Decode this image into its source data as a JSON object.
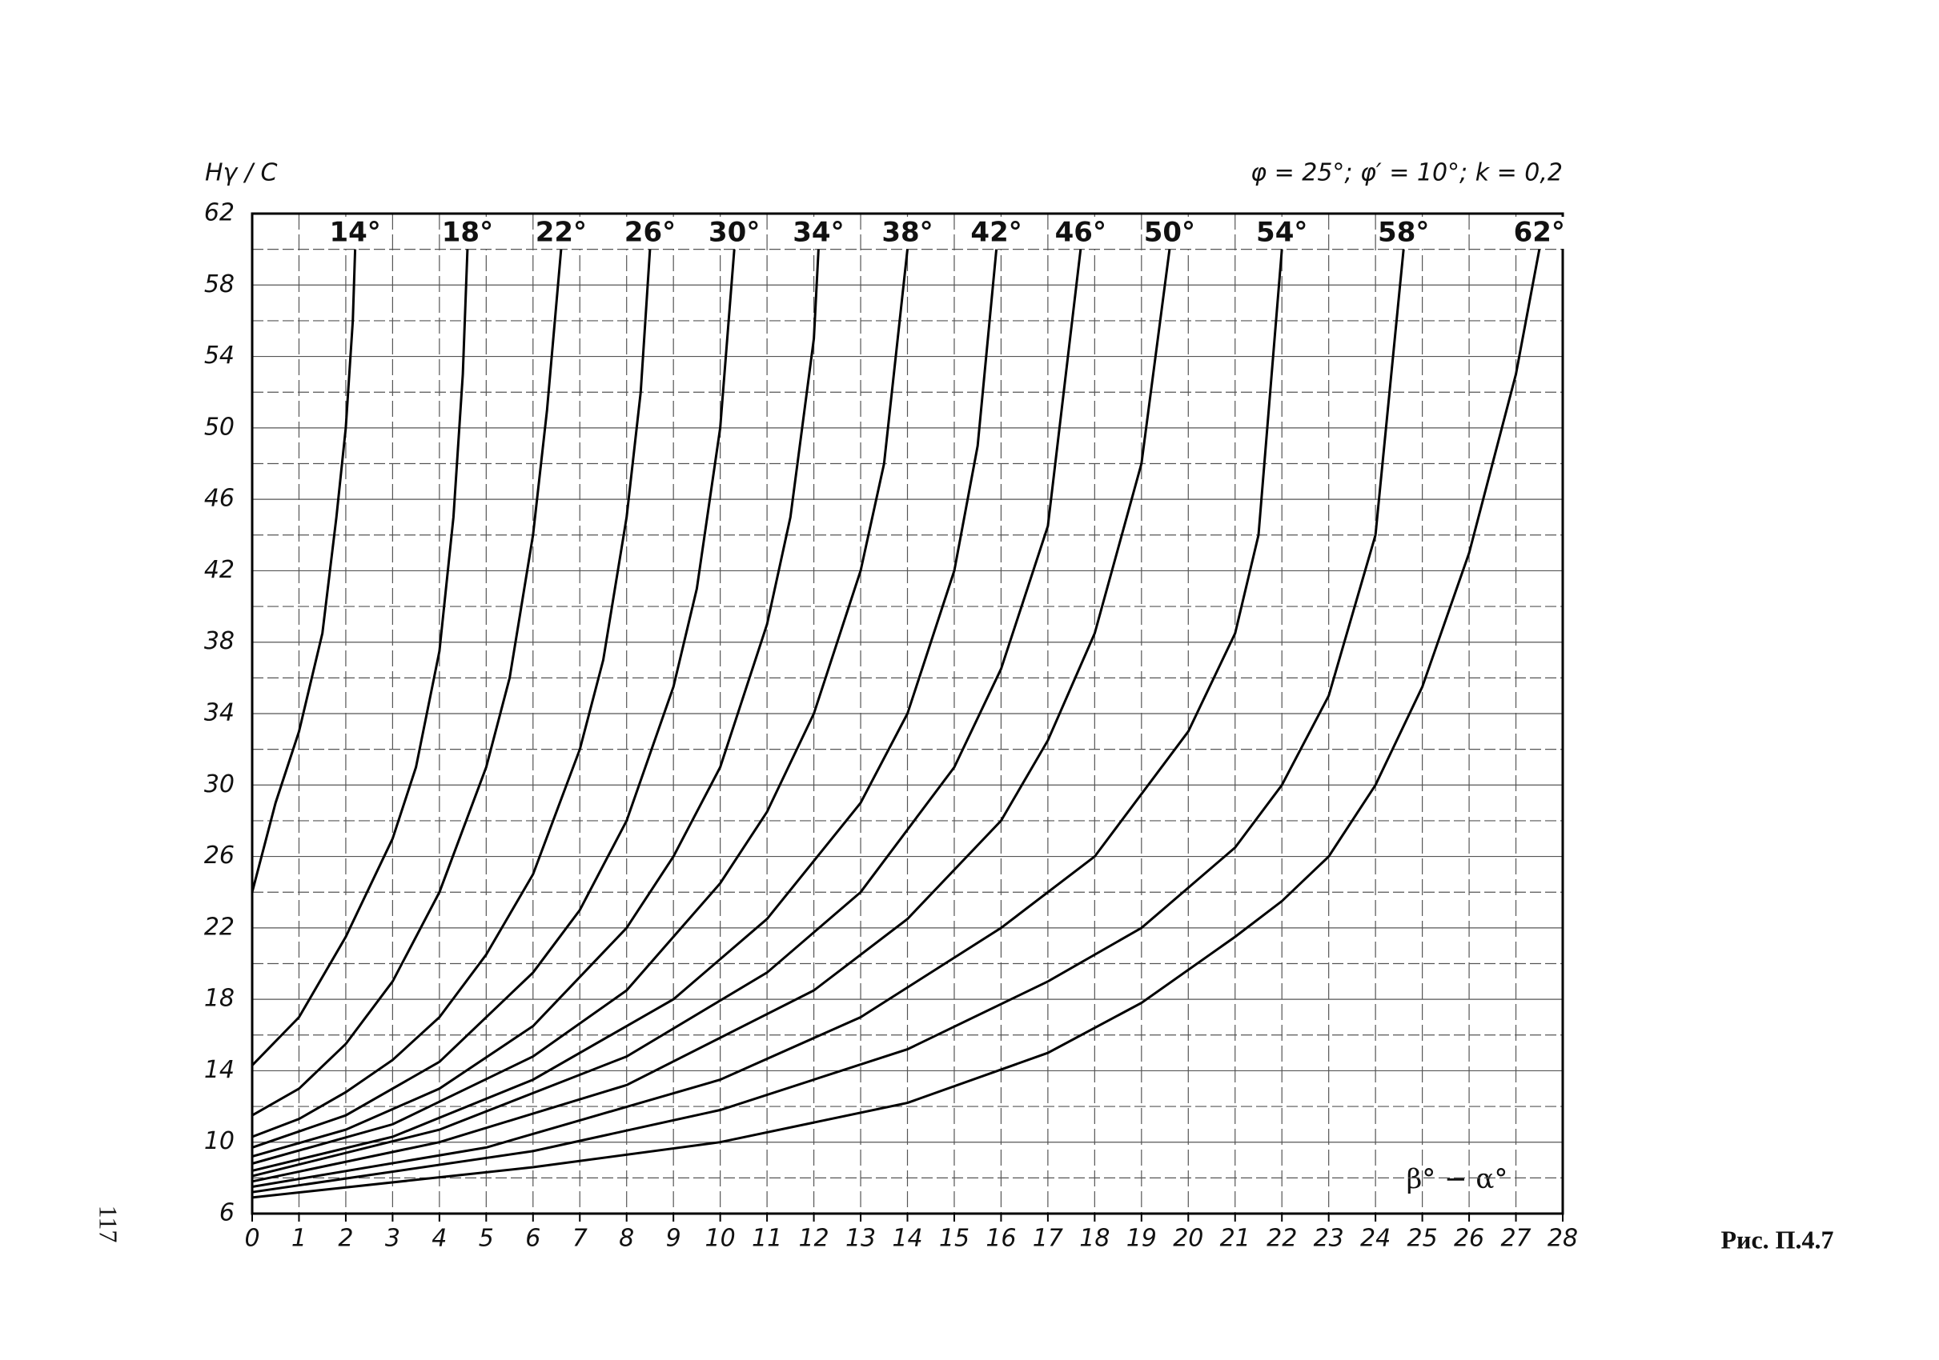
{
  "chart_data": {
    "type": "line",
    "y_title": "Hγ / C",
    "subtitle": "φ = 25°; φ′ = 10°; k = 0,2",
    "x_title": "β° − α°",
    "caption": "Рис. П.4.7",
    "page_number": "117",
    "xlim": [
      0,
      28
    ],
    "ylim": [
      6,
      62
    ],
    "xticks": [
      0,
      1,
      2,
      3,
      4,
      5,
      6,
      7,
      8,
      9,
      10,
      11,
      12,
      13,
      14,
      15,
      16,
      17,
      18,
      19,
      20,
      21,
      22,
      23,
      24,
      25,
      26,
      27,
      28
    ],
    "yticks": [
      6,
      10,
      14,
      18,
      22,
      26,
      30,
      34,
      38,
      42,
      46,
      50,
      54,
      58,
      62
    ],
    "yminor": [
      8,
      12,
      16,
      20,
      24,
      28,
      32,
      36,
      40,
      44,
      48,
      52,
      56,
      60
    ],
    "grid": true,
    "color": "#000000",
    "series": [
      {
        "name": "14°",
        "x": [
          0,
          0.5,
          1,
          1.5,
          1.8,
          2.0,
          2.15,
          2.2
        ],
        "values": [
          24,
          29,
          33,
          38.5,
          45,
          50,
          56,
          60
        ]
      },
      {
        "name": "18°",
        "x": [
          0,
          1,
          2,
          3,
          3.5,
          4,
          4.3,
          4.5,
          4.6
        ],
        "values": [
          14.3,
          17,
          21.5,
          27,
          31,
          37.5,
          45,
          53,
          60
        ]
      },
      {
        "name": "22°",
        "x": [
          0,
          1,
          2,
          3,
          4,
          5,
          5.5,
          6,
          6.3,
          6.6
        ],
        "values": [
          11.5,
          13,
          15.5,
          19,
          24,
          31,
          36,
          44,
          51,
          60
        ]
      },
      {
        "name": "26°",
        "x": [
          0,
          1,
          2,
          3,
          4,
          5,
          6,
          7,
          7.5,
          8,
          8.3,
          8.5
        ],
        "values": [
          10.3,
          11.3,
          12.8,
          14.6,
          17,
          20.5,
          25,
          32,
          37,
          45,
          52,
          60
        ]
      },
      {
        "name": "30°",
        "x": [
          0,
          2,
          4,
          6,
          7,
          8,
          9,
          9.5,
          10,
          10.3
        ],
        "values": [
          9.7,
          11.5,
          14.5,
          19.5,
          23,
          28,
          35.5,
          41,
          50,
          60
        ]
      },
      {
        "name": "34°",
        "x": [
          0,
          2,
          4,
          6,
          8,
          9,
          10,
          11,
          11.5,
          12,
          12.1
        ],
        "values": [
          9.2,
          10.7,
          13,
          16.5,
          22,
          26,
          31,
          39,
          45,
          55,
          60
        ]
      },
      {
        "name": "38°",
        "x": [
          0,
          3,
          6,
          8,
          10,
          11,
          12,
          13,
          13.5,
          14
        ],
        "values": [
          8.8,
          11,
          14.8,
          18.5,
          24.5,
          28.5,
          34,
          42,
          48,
          60
        ]
      },
      {
        "name": "42°",
        "x": [
          0,
          3,
          6,
          9,
          11,
          13,
          14,
          15,
          15.5,
          15.9
        ],
        "values": [
          8.4,
          10.3,
          13.5,
          18,
          22.5,
          29,
          34,
          42,
          49,
          60
        ]
      },
      {
        "name": "46°",
        "x": [
          0,
          4,
          8,
          11,
          13,
          15,
          16,
          17,
          17.7
        ],
        "values": [
          8.1,
          10.7,
          14.8,
          19.5,
          24,
          31,
          36.5,
          44.5,
          60
        ]
      },
      {
        "name": "50°",
        "x": [
          0,
          4,
          8,
          12,
          14,
          16,
          17,
          18,
          19,
          19.6
        ],
        "values": [
          7.8,
          10,
          13.2,
          18.5,
          22.5,
          28,
          32.5,
          38.5,
          48,
          60
        ]
      },
      {
        "name": "54°",
        "x": [
          0,
          5,
          10,
          13,
          16,
          18,
          20,
          21,
          21.5,
          22
        ],
        "values": [
          7.5,
          9.7,
          13.5,
          17,
          22,
          26,
          33,
          38.5,
          44,
          60
        ]
      },
      {
        "name": "58°",
        "x": [
          0,
          6,
          10,
          14,
          17,
          19,
          21,
          22,
          23,
          24,
          24.6
        ],
        "values": [
          7.2,
          9.5,
          11.8,
          15.2,
          19,
          22,
          26.5,
          30,
          35,
          44,
          60
        ]
      },
      {
        "name": "62°",
        "x": [
          0,
          6,
          10,
          14,
          17,
          19,
          21,
          22,
          23,
          24,
          25,
          26,
          27,
          27.5
        ],
        "values": [
          6.9,
          8.6,
          10,
          12.2,
          15,
          17.8,
          21.5,
          23.5,
          26,
          30,
          35.5,
          43,
          53,
          60
        ]
      }
    ]
  }
}
